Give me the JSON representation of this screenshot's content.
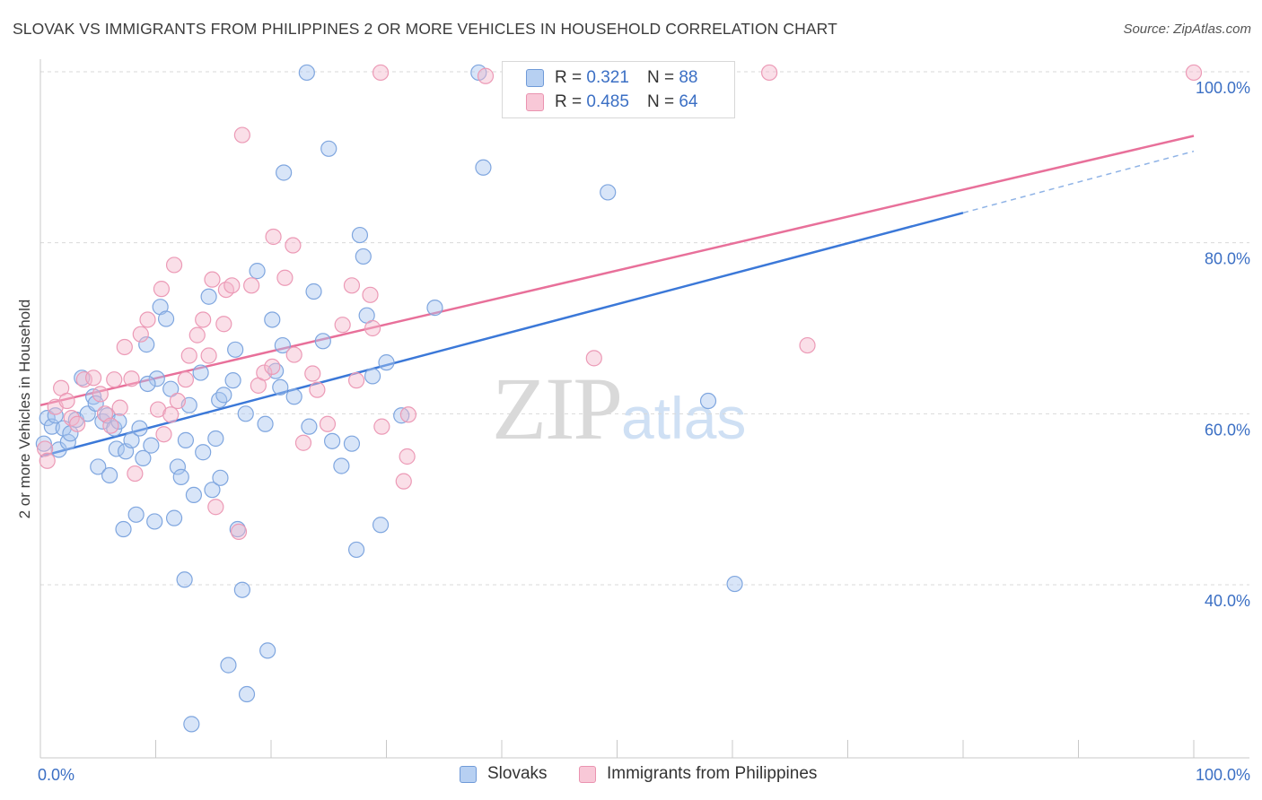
{
  "title": "SLOVAK VS IMMIGRANTS FROM PHILIPPINES 2 OR MORE VEHICLES IN HOUSEHOLD CORRELATION CHART",
  "source": "Source: ZipAtlas.com",
  "watermark": {
    "zip": "ZIP",
    "atlas": "atlas"
  },
  "colors": {
    "blue": "#3b78d8",
    "blue_fill": "#a9c6ef",
    "pink": "#e8709a",
    "pink_fill": "#f5b8cc",
    "tick_text": "#3b6fc4"
  },
  "legend_top": {
    "rows": [
      {
        "r_label": "R = ",
        "r_value": "0.321",
        "n_label": "N = ",
        "n_value": "88"
      },
      {
        "r_label": "R = ",
        "r_value": "0.485",
        "n_label": "N = ",
        "n_value": "64"
      }
    ]
  },
  "legend_bottom": [
    {
      "label": "Slovaks"
    },
    {
      "label": "Immigrants from Philippines"
    }
  ],
  "chart_data": {
    "type": "scatter",
    "title": "SLOVAK VS IMMIGRANTS FROM PHILIPPINES 2 OR MORE VEHICLES IN HOUSEHOLD CORRELATION CHART",
    "xlabel": "",
    "ylabel": "2 or more Vehicles in Household",
    "xlim": [
      0,
      100
    ],
    "ylim": [
      20,
      100
    ],
    "x_tick_labels": [
      {
        "value": 0,
        "label": "0.0%"
      },
      {
        "value": 100,
        "label": "100.0%"
      }
    ],
    "y_tick_labels": [
      {
        "value": 100,
        "label": "100.0%"
      },
      {
        "value": 80,
        "label": "80.0%"
      },
      {
        "value": 60,
        "label": "60.0%"
      },
      {
        "value": 40,
        "label": "40.0%"
      }
    ],
    "series": [
      {
        "name": "Slovaks",
        "color": "#3b78d8",
        "r": 0.321,
        "n": 88,
        "trend": {
          "x0": 0,
          "y0": 55,
          "x1": 80,
          "y1": 83.5,
          "dashed_to_x": 100,
          "dashed_to_y": 90.7
        },
        "points": [
          [
            0.3,
            56.5
          ],
          [
            0.6,
            59.5
          ],
          [
            1.0,
            58.5
          ],
          [
            1.3,
            59.8
          ],
          [
            1.6,
            55.8
          ],
          [
            2.0,
            58.3
          ],
          [
            2.4,
            56.7
          ],
          [
            2.6,
            57.7
          ],
          [
            3.1,
            59.3
          ],
          [
            3.6,
            64.2
          ],
          [
            4.1,
            60.0
          ],
          [
            4.6,
            62.0
          ],
          [
            4.8,
            61.2
          ],
          [
            5.0,
            53.8
          ],
          [
            5.4,
            59.1
          ],
          [
            5.8,
            59.8
          ],
          [
            6.0,
            52.8
          ],
          [
            6.4,
            58.3
          ],
          [
            6.6,
            55.9
          ],
          [
            6.8,
            59.1
          ],
          [
            7.2,
            46.5
          ],
          [
            7.4,
            55.6
          ],
          [
            7.9,
            56.9
          ],
          [
            8.3,
            48.2
          ],
          [
            8.6,
            58.3
          ],
          [
            8.9,
            54.8
          ],
          [
            9.2,
            68.1
          ],
          [
            9.6,
            56.3
          ],
          [
            9.9,
            47.4
          ],
          [
            10.1,
            64.1
          ],
          [
            10.4,
            72.5
          ],
          [
            10.9,
            71.1
          ],
          [
            11.3,
            62.9
          ],
          [
            11.6,
            47.8
          ],
          [
            11.9,
            53.8
          ],
          [
            12.2,
            52.6
          ],
          [
            12.6,
            56.9
          ],
          [
            12.9,
            61.0
          ],
          [
            13.3,
            50.5
          ],
          [
            13.9,
            64.8
          ],
          [
            14.1,
            55.5
          ],
          [
            14.6,
            73.7
          ],
          [
            14.9,
            51.1
          ],
          [
            15.2,
            57.1
          ],
          [
            15.6,
            52.5
          ],
          [
            15.5,
            61.6
          ],
          [
            15.9,
            62.2
          ],
          [
            16.3,
            30.6
          ],
          [
            16.7,
            63.9
          ],
          [
            16.9,
            67.5
          ],
          [
            17.1,
            46.5
          ],
          [
            17.5,
            39.4
          ],
          [
            17.9,
            27.2
          ],
          [
            18.8,
            76.7
          ],
          [
            19.5,
            58.8
          ],
          [
            19.7,
            32.3
          ],
          [
            20.1,
            71.0
          ],
          [
            20.4,
            65.0
          ],
          [
            20.8,
            63.1
          ],
          [
            21.0,
            68.0
          ],
          [
            21.1,
            88.2
          ],
          [
            23.1,
            99.9
          ],
          [
            23.3,
            58.5
          ],
          [
            23.7,
            74.3
          ],
          [
            25.0,
            91.0
          ],
          [
            25.3,
            56.8
          ],
          [
            26.1,
            53.9
          ],
          [
            27.4,
            44.1
          ],
          [
            27.7,
            80.9
          ],
          [
            28.0,
            78.4
          ],
          [
            28.3,
            71.5
          ],
          [
            28.8,
            64.4
          ],
          [
            29.5,
            47.0
          ],
          [
            31.3,
            59.8
          ],
          [
            34.2,
            72.4
          ],
          [
            38.0,
            99.9
          ],
          [
            38.4,
            88.8
          ],
          [
            49.2,
            85.9
          ],
          [
            57.9,
            61.5
          ],
          [
            60.2,
            40.1
          ],
          [
            12.5,
            40.6
          ],
          [
            13.1,
            23.7
          ],
          [
            27.0,
            56.5
          ],
          [
            9.3,
            63.5
          ],
          [
            22.0,
            62.0
          ],
          [
            30.0,
            66.0
          ],
          [
            17.8,
            60.0
          ],
          [
            24.5,
            68.5
          ]
        ]
      },
      {
        "name": "Immigrants from Philippines",
        "color": "#e8709a",
        "r": 0.485,
        "n": 64,
        "trend": {
          "x0": 0,
          "y0": 61.0,
          "x1": 100,
          "y1": 92.5
        },
        "points": [
          [
            0.4,
            55.9
          ],
          [
            0.6,
            54.5
          ],
          [
            1.3,
            60.8
          ],
          [
            1.8,
            63.0
          ],
          [
            2.3,
            61.5
          ],
          [
            2.7,
            59.5
          ],
          [
            3.2,
            58.8
          ],
          [
            3.8,
            64.0
          ],
          [
            4.6,
            64.2
          ],
          [
            5.2,
            62.3
          ],
          [
            5.6,
            60.0
          ],
          [
            6.1,
            58.6
          ],
          [
            6.4,
            64.0
          ],
          [
            6.9,
            60.7
          ],
          [
            7.3,
            67.8
          ],
          [
            7.9,
            64.1
          ],
          [
            8.2,
            53.0
          ],
          [
            8.7,
            69.3
          ],
          [
            9.3,
            71.0
          ],
          [
            10.2,
            60.5
          ],
          [
            10.5,
            74.6
          ],
          [
            10.7,
            57.6
          ],
          [
            11.3,
            59.9
          ],
          [
            11.6,
            77.4
          ],
          [
            11.9,
            61.5
          ],
          [
            12.6,
            64.0
          ],
          [
            12.9,
            66.8
          ],
          [
            13.6,
            69.2
          ],
          [
            14.1,
            71.0
          ],
          [
            14.6,
            66.8
          ],
          [
            14.9,
            75.7
          ],
          [
            15.2,
            49.1
          ],
          [
            15.9,
            70.5
          ],
          [
            16.1,
            74.5
          ],
          [
            16.6,
            75.0
          ],
          [
            17.2,
            46.2
          ],
          [
            17.5,
            92.6
          ],
          [
            18.3,
            75.0
          ],
          [
            18.9,
            63.3
          ],
          [
            19.4,
            64.8
          ],
          [
            20.1,
            65.5
          ],
          [
            20.2,
            80.7
          ],
          [
            21.2,
            75.9
          ],
          [
            21.9,
            79.7
          ],
          [
            22.0,
            66.9
          ],
          [
            22.8,
            56.6
          ],
          [
            23.6,
            64.7
          ],
          [
            24.0,
            62.8
          ],
          [
            24.9,
            58.8
          ],
          [
            26.2,
            70.4
          ],
          [
            27.0,
            75.0
          ],
          [
            27.4,
            63.9
          ],
          [
            28.6,
            73.9
          ],
          [
            28.8,
            70.0
          ],
          [
            29.6,
            58.5
          ],
          [
            31.5,
            52.1
          ],
          [
            31.9,
            59.9
          ],
          [
            31.8,
            55.0
          ],
          [
            29.5,
            99.9
          ],
          [
            48.0,
            66.5
          ],
          [
            63.2,
            99.9
          ],
          [
            66.5,
            68.0
          ],
          [
            100.0,
            99.9
          ],
          [
            38.6,
            99.5
          ]
        ]
      }
    ]
  }
}
